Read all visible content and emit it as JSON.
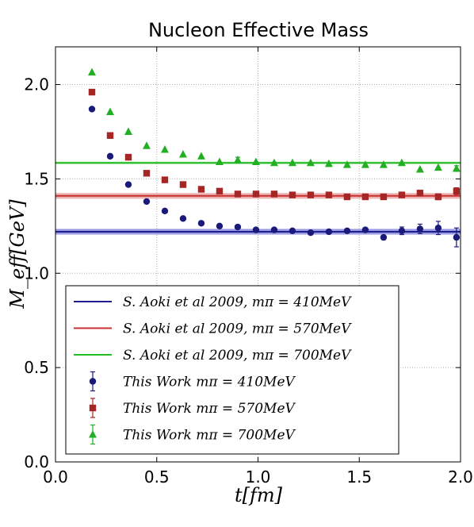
{
  "chart_data": {
    "type": "scatter",
    "title": "Nucleon Effective Mass",
    "xlabel": "t[fm]",
    "ylabel": "M_eff[GeV]",
    "xlim": [
      0.0,
      2.0
    ],
    "ylim": [
      0.0,
      2.2
    ],
    "xticks": [
      "0.0",
      "0.5",
      "1.0",
      "1.5",
      "2.0"
    ],
    "yticks": [
      "0.0",
      "0.5",
      "1.0",
      "1.5",
      "2.0"
    ],
    "grid": true,
    "legend_position": "lower-center",
    "reference_lines": [
      {
        "name": "S. Aoki et al 2009,  mπ = 410MeV",
        "value": 1.22,
        "band": 0.015,
        "color": "#1f1f8f",
        "band_color": "#7a7ad8"
      },
      {
        "name": "S. Aoki et al 2009,  mπ = 570MeV",
        "value": 1.41,
        "band": 0.015,
        "color": "#c83030",
        "band_color": "#e59a9a"
      },
      {
        "name": "S. Aoki et al 2009,  mπ = 700MeV",
        "value": 1.585,
        "band": 0.006,
        "color": "#22bb22",
        "band_color": "#8ee08e"
      }
    ],
    "series": [
      {
        "name": "This Work mπ = 410MeV",
        "marker": "circle",
        "color": "#1a1a7a",
        "x": [
          0.18,
          0.27,
          0.36,
          0.45,
          0.54,
          0.63,
          0.72,
          0.81,
          0.9,
          0.99,
          1.08,
          1.17,
          1.26,
          1.35,
          1.44,
          1.53,
          1.62,
          1.71,
          1.8,
          1.89,
          1.98
        ],
        "y": [
          1.87,
          1.62,
          1.47,
          1.38,
          1.33,
          1.29,
          1.265,
          1.25,
          1.245,
          1.23,
          1.23,
          1.225,
          1.215,
          1.22,
          1.225,
          1.23,
          1.19,
          1.225,
          1.235,
          1.24,
          1.19
        ],
        "err": [
          0,
          0,
          0,
          0,
          0,
          0,
          0,
          0,
          0,
          0,
          0,
          0,
          0,
          0,
          0,
          0,
          0,
          0.02,
          0.025,
          0.035,
          0.05
        ]
      },
      {
        "name": "This Work mπ = 570MeV",
        "marker": "square",
        "color": "#a62525",
        "x": [
          0.18,
          0.27,
          0.36,
          0.45,
          0.54,
          0.63,
          0.72,
          0.81,
          0.9,
          0.99,
          1.08,
          1.17,
          1.26,
          1.35,
          1.44,
          1.53,
          1.62,
          1.71,
          1.8,
          1.89,
          1.98
        ],
        "y": [
          1.96,
          1.73,
          1.615,
          1.53,
          1.495,
          1.47,
          1.445,
          1.435,
          1.42,
          1.42,
          1.42,
          1.415,
          1.415,
          1.415,
          1.405,
          1.405,
          1.405,
          1.415,
          1.425,
          1.405,
          1.435
        ],
        "err": [
          0,
          0,
          0,
          0,
          0,
          0,
          0,
          0,
          0,
          0,
          0,
          0,
          0,
          0,
          0,
          0,
          0,
          0,
          0.012,
          0.015,
          0.018
        ]
      },
      {
        "name": "This Work mπ = 700MeV",
        "marker": "triangle",
        "color": "#22b022",
        "x": [
          0.18,
          0.27,
          0.36,
          0.45,
          0.54,
          0.63,
          0.72,
          0.81,
          0.9,
          0.99,
          1.08,
          1.17,
          1.26,
          1.35,
          1.44,
          1.53,
          1.62,
          1.71,
          1.8,
          1.89,
          1.98
        ],
        "y": [
          2.065,
          1.855,
          1.75,
          1.675,
          1.655,
          1.63,
          1.62,
          1.59,
          1.6,
          1.59,
          1.585,
          1.585,
          1.585,
          1.58,
          1.575,
          1.575,
          1.575,
          1.585,
          1.55,
          1.56,
          1.555
        ],
        "err": [
          0,
          0,
          0,
          0,
          0,
          0,
          0,
          0,
          0.015,
          0,
          0,
          0,
          0,
          0,
          0,
          0,
          0,
          0,
          0,
          0,
          0.015
        ]
      }
    ]
  }
}
